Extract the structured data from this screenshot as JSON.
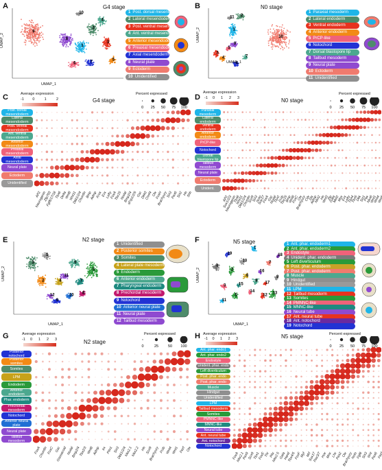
{
  "colors": {
    "hm_low": "#f8ded7",
    "hm_high": "#d6271c"
  },
  "panelA": {
    "label": "A",
    "title": "G4 stage",
    "xlabel": "UMAP_1",
    "ylabel": "UMAP_2",
    "ticks_x": [
      "-10",
      "-5",
      "0",
      "5"
    ],
    "ticks_y": [
      "10",
      "5",
      "0",
      "-5",
      "-10"
    ],
    "legend": [
      {
        "n": "1",
        "name": "Post. dorsal mesendoderm",
        "color": "#1fb5e8"
      },
      {
        "n": "2",
        "name": "Lateral mesendoderm",
        "color": "#4e8c6b"
      },
      {
        "n": "3",
        "name": "Post. ventral mesendoderm",
        "color": "#e7331f"
      },
      {
        "n": "4",
        "name": "Ant. ventral mesendoderm",
        "color": "#4ca88f"
      },
      {
        "n": "5",
        "name": "Anterior mesendoderm",
        "color": "#f28a16"
      },
      {
        "n": "6",
        "name": "Preaxial mesendoderm",
        "color": "#f0627a"
      },
      {
        "n": "7",
        "name": "Axial mesendoderm",
        "color": "#2233d4"
      },
      {
        "n": "8",
        "name": "Neural plate",
        "color": "#8f4ad0"
      },
      {
        "n": "9",
        "name": "Ectoderm",
        "color": "#f07b6e"
      },
      {
        "n": "10",
        "name": "Unidentified",
        "color": "#8f8f8f"
      }
    ],
    "side_letters": [
      "a",
      "b",
      "c"
    ]
  },
  "panelB": {
    "label": "B",
    "title": "N0 stage",
    "xlabel": "UMAP_1",
    "ylabel": "UMAP_2",
    "legend": [
      {
        "n": "1",
        "name": "Paraxial mesoderm",
        "color": "#1fb5e8"
      },
      {
        "n": "2",
        "name": "Lateral endoderm",
        "color": "#4e8c6b"
      },
      {
        "n": "3",
        "name": "Ventral endoderm",
        "color": "#e7331f"
      },
      {
        "n": "4",
        "name": "Anterior endoderm",
        "color": "#f28a16"
      },
      {
        "n": "5",
        "name": "PrCP-like",
        "color": "#f0627a"
      },
      {
        "n": "6",
        "name": "Notochord",
        "color": "#2233d4"
      },
      {
        "n": "7",
        "name": "Dorsal blastopore lip",
        "color": "#4ca88f"
      },
      {
        "n": "8",
        "name": "Tailbud mesoderm",
        "color": "#8f4ad0"
      },
      {
        "n": "9",
        "name": "Neural plate",
        "color": "#8f4ad0"
      },
      {
        "n": "10",
        "name": "Ectoderm",
        "color": "#f07b6e"
      },
      {
        "n": "11",
        "name": "Unidentified",
        "color": "#8f8f8f"
      }
    ],
    "side_letters": [
      "a",
      "b"
    ]
  },
  "panelC": {
    "label": "C",
    "title": "G4 stage",
    "avg_title": "Average expression",
    "pct_title": "Percent expressed",
    "cbar_ticks": [
      "-1",
      "0",
      "1",
      "2"
    ],
    "pct_ticks": [
      "0",
      "25",
      "50",
      "75",
      "100"
    ],
    "rows": [
      {
        "name": "Post. dorsal mesendoderm",
        "color": "#1fb5e8"
      },
      {
        "name": "Lateral mesendoderm",
        "color": "#4e8c6b"
      },
      {
        "name": "Post. ventral mesendoderm",
        "color": "#e7331f"
      },
      {
        "name": "Ant. ventral mesendoderm",
        "color": "#4ca88f"
      },
      {
        "name": "Anterior mesendoderm",
        "color": "#f28a16"
      },
      {
        "name": "Preaxial mesendoderm",
        "color": "#f0627a"
      },
      {
        "name": "Axial mesendoderm",
        "color": "#2233d4"
      },
      {
        "name": "Neural plate",
        "color": "#8f4ad0"
      },
      {
        "name": "Ectoderm",
        "color": "#f07b6e"
      },
      {
        "name": "Unidentified",
        "color": "#9a9a9a"
      }
    ],
    "genes": [
      "AP2",
      "Neurogenin",
      "Zfp703",
      "Fgf8/17/18",
      "Tbx6",
      "Delta",
      "Wnt8",
      "Wnt11",
      "Dkk1/2/4",
      "Chordin",
      "Bmp",
      "Admp",
      "Krox",
      "Evx",
      "Lefty",
      "FoxA",
      "Tbx15",
      "Nodal",
      "Bmp2/4",
      "sFrp1/2/5",
      "Gsc",
      "Dkk3",
      "Cnnf4",
      "Otx",
      "FoxH",
      "Brachyury",
      "Six3",
      "Pax6",
      "Six2",
      "Hh",
      "Shh"
    ]
  },
  "panelD": {
    "label": "D",
    "title": "N0 stage",
    "avg_title": "Average expression",
    "pct_title": "Percent expressed",
    "cbar_ticks": [
      "-1",
      "0",
      "1",
      "2",
      "3"
    ],
    "pct_ticks": [
      "0",
      "25",
      "50",
      "75",
      "100"
    ],
    "rows": [
      {
        "name": "Paraxial mesoderm",
        "color": "#1fb5e8"
      },
      {
        "name": "Lateral endoderm",
        "color": "#4e8c6b"
      },
      {
        "name": "Ventral endoderm",
        "color": "#e7331f"
      },
      {
        "name": "Anterior endoderm",
        "color": "#f28a16"
      },
      {
        "name": "PrCP-like",
        "color": "#f0627a"
      },
      {
        "name": "Notochord",
        "color": "#2233d4"
      },
      {
        "name": "Dorsal blastopore lip",
        "color": "#4ca88f"
      },
      {
        "name": "Tailbud mesoderm",
        "color": "#8f4ad0"
      },
      {
        "name": "Neural plate",
        "color": "#8f4ad0"
      },
      {
        "name": "Ectoderm",
        "color": "#f07b6e"
      },
      {
        "name": "Unident.",
        "color": "#9a9a9a"
      }
    ],
    "genes": [
      "AP2",
      "Sox1/2/3",
      "Neurogenin",
      "Tbx6",
      "Wnt11",
      "Dkk1/2/4",
      "Chordin",
      "Sox9",
      "Six3",
      "Noto",
      "Sox17",
      "FoxA",
      "Gsc",
      "Nodal",
      "Tbx2",
      "Frzb",
      "Tbx15",
      "Bmp",
      "Wnt8",
      "FoxC",
      "Otx",
      "Brachyury",
      "Cdx",
      "Dlx",
      "Admp",
      "Nkx2",
      "Hh",
      "Wnt3",
      "Zfp",
      "Gata",
      "Mef2",
      "Msx",
      "Evx",
      "Lefty",
      "Tbx4",
      "Tbx5",
      "Dkk",
      "Six1",
      "Pax",
      "Nkx6",
      "Wnt1",
      "Wnt4",
      "Wnt5"
    ]
  },
  "panelE": {
    "label": "E",
    "title": "N2 stage",
    "xlabel": "UMAP_1",
    "ylabel": "UMAP_2",
    "ticks_x": [
      "-10",
      "-5",
      "0",
      "5",
      "10"
    ],
    "legend": [
      {
        "n": "1",
        "name": "Unidentified",
        "color": "#8f8f8f"
      },
      {
        "n": "2",
        "name": "Posterior somites",
        "color": "#f28a16"
      },
      {
        "n": "3",
        "name": "Somites",
        "color": "#4e8c6b"
      },
      {
        "n": "4",
        "name": "Lateral plate mesoderm(LPM)",
        "color": "#c7a21a"
      },
      {
        "n": "5",
        "name": "Endoderm",
        "color": "#2a9a3a"
      },
      {
        "n": "6",
        "name": "Anterior endoderm",
        "color": "#4ca88f"
      },
      {
        "n": "7",
        "name": "Pharyngeal endoderm",
        "color": "#1f8a80"
      },
      {
        "n": "8",
        "name": "Prechordal mesoderm",
        "color": "#c2196e"
      },
      {
        "n": "9",
        "name": "Notochord",
        "color": "#2233d4"
      },
      {
        "n": "10",
        "name": "Anterior neural plate",
        "color": "#1f6fd4"
      },
      {
        "n": "11",
        "name": "Neural plate",
        "color": "#8f4ad0"
      },
      {
        "n": "12",
        "name": "Tailbud mesoderm",
        "color": "#8f4ad0"
      }
    ],
    "side_letters": [
      "a",
      "b",
      "c"
    ]
  },
  "panelF": {
    "label": "F",
    "title": "N5 stage",
    "xlabel": "UMAP_1",
    "ylabel": "UMAP_2",
    "legend": [
      {
        "n": "1",
        "name": "Ant. phar. endoderm1",
        "color": "#1fb5e8"
      },
      {
        "n": "2",
        "name": "Ant. phar. endoderm2",
        "color": "#2a9a3a"
      },
      {
        "n": "3",
        "name": "Endostyle",
        "color": "#f0627a"
      },
      {
        "n": "4",
        "name": "Unident. phar. endoderm",
        "color": "#7a7a7a"
      },
      {
        "n": "5",
        "name": "Left diverticulum",
        "color": "#2a9a3a"
      },
      {
        "n": "6",
        "name": "Post. phar. endoderm",
        "color": "#c9a227"
      },
      {
        "n": "7",
        "name": "Post. phar. endoderm",
        "color": "#f07b6e"
      },
      {
        "n": "8",
        "name": "Muscle",
        "color": "#4ca88f"
      },
      {
        "n": "9",
        "name": "Hindgut",
        "color": "#8f8f8f"
      },
      {
        "n": "10",
        "name": "Unidentified",
        "color": "#9a9a9a"
      },
      {
        "n": "11",
        "name": "LPM",
        "color": "#1fb5e8"
      },
      {
        "n": "12",
        "name": "Tailbud mesoderm",
        "color": "#e7331f"
      },
      {
        "n": "13",
        "name": "Somites",
        "color": "#2a9a3a"
      },
      {
        "n": "14",
        "name": "PMNNC-like",
        "color": "#f0627a"
      },
      {
        "n": "15",
        "name": "MNNC-like",
        "color": "#1f8a80"
      },
      {
        "n": "16",
        "name": "Neural tube",
        "color": "#8f4ad0"
      },
      {
        "n": "17",
        "name": "Ant. neural tube",
        "color": "#e7331f"
      },
      {
        "n": "18",
        "name": "Ant. notochord",
        "color": "#6a2aa0"
      },
      {
        "n": "19",
        "name": "Notochord",
        "color": "#2233d4"
      }
    ],
    "side_letters": [
      "a",
      "b",
      "c",
      "d"
    ]
  },
  "panelG": {
    "label": "G",
    "title": "N2 stage",
    "avg_title": "Average expression",
    "pct_title": "Percent expressed",
    "cbar_ticks": [
      "-1",
      "0",
      "1",
      "2",
      "3"
    ],
    "pct_ticks": [
      "0",
      "25",
      "50",
      "100"
    ],
    "rows": [
      {
        "name": "Posterior notochord",
        "color": "#2233d4"
      },
      {
        "name": "Posterior somites",
        "color": "#f28a16"
      },
      {
        "name": "Somites",
        "color": "#4e8c6b"
      },
      {
        "name": "LPM",
        "color": "#c7a21a"
      },
      {
        "name": "Endoderm",
        "color": "#2a9a3a"
      },
      {
        "name": "Anterior endoderm",
        "color": "#4ca88f"
      },
      {
        "name": "Phar. endoderm",
        "color": "#1f8a80"
      },
      {
        "name": "Prechordal mesoderm",
        "color": "#c2196e"
      },
      {
        "name": "Notochord",
        "color": "#2233d4"
      },
      {
        "name": "Anterior neural plate",
        "color": "#1f6fd4"
      },
      {
        "name": "Neural plate",
        "color": "#8f4ad0"
      },
      {
        "name": "Tailbud mesoderm",
        "color": "#8f4ad0"
      }
    ],
    "genes": [
      "FoxA",
      "Chordin",
      "FoxC",
      "Gsc",
      "Goosecoid",
      "Nodal",
      "Bmp2/4",
      "Tbx2/3",
      "Wnt8",
      "Admp",
      "Irx",
      "Pitx1",
      "Six3",
      "Dkk1/2/4",
      "Nkx2.1",
      "Nkx2.2",
      "Hh",
      "Sox9",
      "Brachyury",
      "Frzb",
      "Wnt4",
      "Wnt1",
      "Fezf",
      "Otx"
    ]
  },
  "panelH": {
    "label": "H",
    "title": "N5 stage",
    "avg_title": "Average expression",
    "pct_title": "Percent expressed",
    "cbar_ticks": [
      "-1",
      "0",
      "1",
      "2",
      "3"
    ],
    "pct_ticks": [
      "0",
      "25",
      "50",
      "75",
      "100"
    ],
    "rows": [
      {
        "name": "Ant. phar. endo1",
        "color": "#1fb5e8"
      },
      {
        "name": "Ant. phar. endo2",
        "color": "#2a9a3a"
      },
      {
        "name": "Endostyle",
        "color": "#f0627a"
      },
      {
        "name": "Unident. phar. endo",
        "color": "#7a7a7a"
      },
      {
        "name": "Left diverticulum",
        "color": "#2a9a3a"
      },
      {
        "name": "Post. phar. endo",
        "color": "#c9a227"
      },
      {
        "name": "Post. phar. endo",
        "color": "#f07b6e"
      },
      {
        "name": "Muscle",
        "color": "#4ca88f"
      },
      {
        "name": "Hindgut",
        "color": "#8f8f8f"
      },
      {
        "name": "Unidentified",
        "color": "#9a9a9a"
      },
      {
        "name": "LPM",
        "color": "#1fb5e8"
      },
      {
        "name": "Tailbud mesoderm",
        "color": "#e7331f"
      },
      {
        "name": "Somites",
        "color": "#2a9a3a"
      },
      {
        "name": "PMNNC-like",
        "color": "#f0627a"
      },
      {
        "name": "MNNC-like",
        "color": "#1f8a80"
      },
      {
        "name": "Neural tube",
        "color": "#8f4ad0"
      },
      {
        "name": "Ant. neural tube",
        "color": "#e7331f"
      },
      {
        "name": "Ant. notochord",
        "color": "#6a2aa0"
      },
      {
        "name": "Notochord",
        "color": "#2233d4"
      }
    ],
    "genes": [
      "FoxA",
      "Nkx2.1",
      "Pax9",
      "Sox9",
      "Tbx1",
      "FoxE",
      "Thr",
      "Pitx",
      "Nkx2.5",
      "Gata",
      "Hand",
      "Tbx4/5",
      "FoxF",
      "Myf",
      "Mrf",
      "Sox17",
      "Pax3/7",
      "Hox",
      "Mnx",
      "Lhx",
      "Pax2",
      "Otx",
      "Brachyury",
      "Noto",
      "Fgf8",
      "Six3",
      "Wnt",
      "Pax6",
      "Fezf"
    ]
  },
  "chart_data": [
    {
      "type": "scatter",
      "title": "G4 stage",
      "xlabel": "UMAP_1",
      "ylabel": "UMAP_2"
    },
    {
      "type": "scatter",
      "title": "N0 stage",
      "xlabel": "UMAP_1",
      "ylabel": "UMAP_2"
    },
    {
      "type": "heatmap",
      "title": "G4 stage"
    },
    {
      "type": "heatmap",
      "title": "N0 stage"
    },
    {
      "type": "scatter",
      "title": "N2 stage",
      "xlabel": "UMAP_1",
      "ylabel": "UMAP_2"
    },
    {
      "type": "scatter",
      "title": "N5 stage",
      "xlabel": "UMAP_1",
      "ylabel": "UMAP_2"
    },
    {
      "type": "heatmap",
      "title": "N2 stage"
    },
    {
      "type": "heatmap",
      "title": "N5 stage"
    }
  ]
}
